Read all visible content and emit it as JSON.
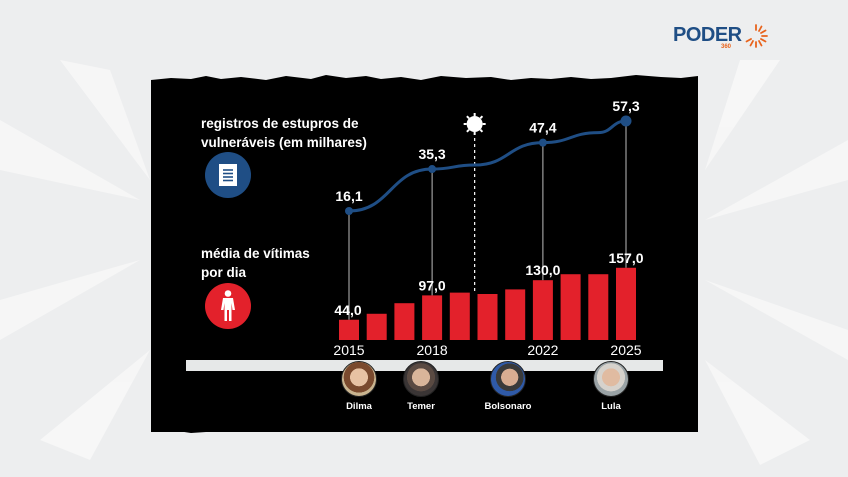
{
  "brand": {
    "name": "PODER",
    "sub": "360",
    "name_color": "#1f4e85",
    "accent_color": "#e8631c"
  },
  "legend": {
    "registros_label": "registros de estupros de vulneráveis (em milhares)",
    "registros_line1": "registros de estupros de",
    "registros_line2": "vulneráveis (em milhares)",
    "registros_icon": "document-icon",
    "registros_color": "#1f4e85",
    "vitimas_line1": "média de vítimas",
    "vitimas_line2": "por dia",
    "vitimas_icon": "person-icon",
    "vitimas_color": "#e3212b"
  },
  "covid_marker": {
    "icon": "virus-icon",
    "position_between": "2019-2020"
  },
  "presidents": [
    {
      "name": "Dilma"
    },
    {
      "name": "Temer"
    },
    {
      "name": "Bolsonaro"
    },
    {
      "name": "Lula"
    }
  ],
  "chart_data": [
    {
      "type": "line",
      "title": "registros de estupros de vulneráveis (em milhares)",
      "x": [
        "2015",
        "2018",
        "2022",
        "2025"
      ],
      "values": [
        16.1,
        35.3,
        47.4,
        57.3
      ],
      "labels": [
        "16,1",
        "35,3",
        "47,4",
        "57,3"
      ],
      "color": "#1f4e85"
    },
    {
      "type": "bar",
      "title": "média de vítimas por dia",
      "categories": [
        "2015",
        "2016",
        "2017",
        "2018",
        "2019",
        "2020",
        "2021",
        "2022",
        "2023",
        "2024",
        "2025"
      ],
      "values": [
        44.0,
        57,
        80,
        97.0,
        103,
        100,
        110,
        130.0,
        143,
        143,
        157.0
      ],
      "labeled": {
        "2015": "44,0",
        "2018": "97,0",
        "2022": "130,0",
        "2025": "157,0"
      },
      "xtick_labels": [
        "2015",
        "2018",
        "2022",
        "2025"
      ],
      "color": "#e3212b"
    }
  ]
}
